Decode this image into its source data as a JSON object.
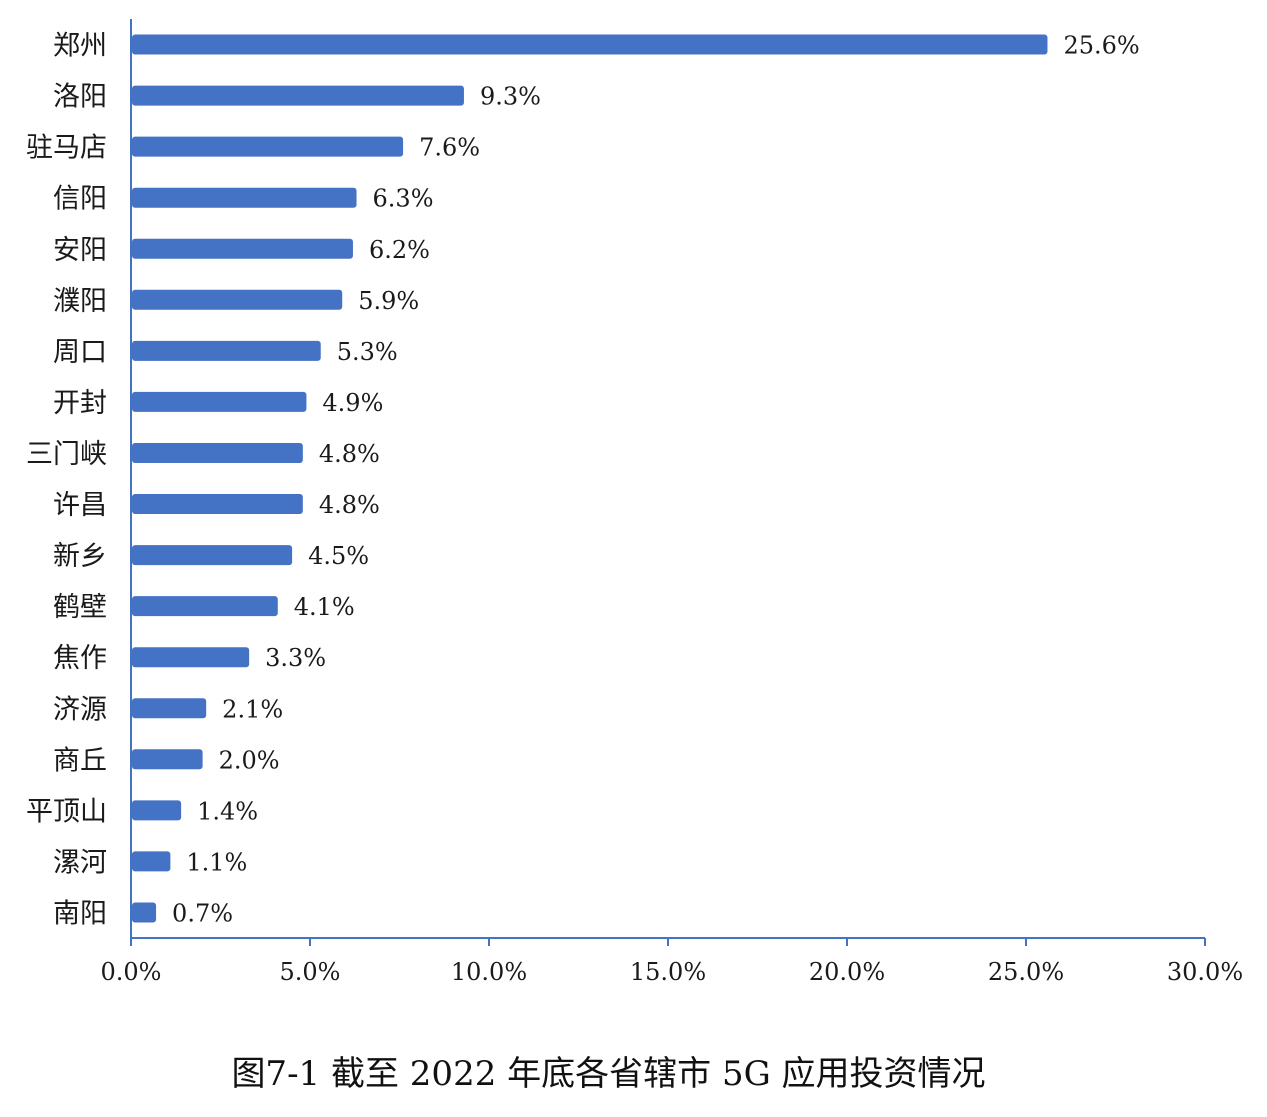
{
  "chart_data": {
    "type": "bar",
    "orientation": "horizontal",
    "title": "图7-1 截至 2022 年底各省辖市 5G 应用投资情况",
    "categories": [
      "郑州",
      "洛阳",
      "驻马店",
      "信阳",
      "安阳",
      "濮阳",
      "周口",
      "开封",
      "三门峡",
      "许昌",
      "新乡",
      "鹤壁",
      "焦作",
      "济源",
      "商丘",
      "平顶山",
      "漯河",
      "南阳"
    ],
    "values": [
      25.6,
      9.3,
      7.6,
      6.3,
      6.2,
      5.9,
      5.3,
      4.9,
      4.8,
      4.8,
      4.5,
      4.1,
      3.3,
      2.1,
      2.0,
      1.4,
      1.1,
      0.7
    ],
    "value_labels": [
      "25.6%",
      "9.3%",
      "7.6%",
      "6.3%",
      "6.2%",
      "5.9%",
      "5.3%",
      "4.9%",
      "4.8%",
      "4.8%",
      "4.5%",
      "4.1%",
      "3.3%",
      "2.1%",
      "2.0%",
      "1.4%",
      "1.1%",
      "0.7%"
    ],
    "xlim": [
      0,
      30
    ],
    "x_ticks": [
      "0.0%",
      "5.0%",
      "10.0%",
      "15.0%",
      "20.0%",
      "25.0%",
      "30.0%"
    ],
    "grid": false,
    "bar_color": "#4472C4",
    "axis_color": "#4472C4"
  }
}
